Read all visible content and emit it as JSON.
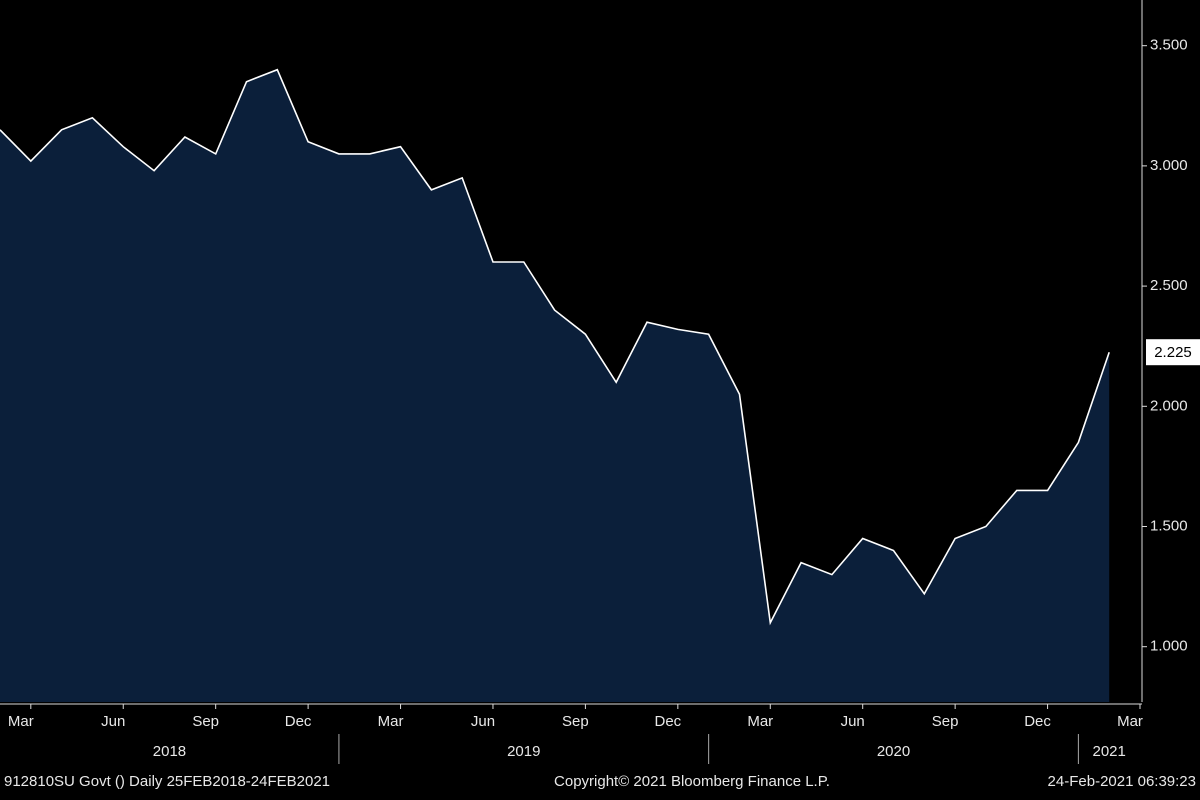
{
  "chart_data": {
    "type": "area",
    "x": [
      "2018-02",
      "2018-03",
      "2018-04",
      "2018-05",
      "2018-06",
      "2018-07",
      "2018-08",
      "2018-09",
      "2018-10",
      "2018-11",
      "2018-12",
      "2019-01",
      "2019-02",
      "2019-03",
      "2019-04",
      "2019-05",
      "2019-06",
      "2019-07",
      "2019-08",
      "2019-09",
      "2019-10",
      "2019-11",
      "2019-12",
      "2020-01",
      "2020-02",
      "2020-03",
      "2020-04",
      "2020-05",
      "2020-06",
      "2020-07",
      "2020-08",
      "2020-09",
      "2020-10",
      "2020-11",
      "2020-12",
      "2021-01",
      "2021-02"
    ],
    "values": [
      3.15,
      3.02,
      3.15,
      3.2,
      3.08,
      2.98,
      3.12,
      3.05,
      3.35,
      3.4,
      3.1,
      3.05,
      3.05,
      3.08,
      2.9,
      2.95,
      2.6,
      2.6,
      2.4,
      2.3,
      2.1,
      2.35,
      2.32,
      2.3,
      2.05,
      1.1,
      1.35,
      1.3,
      1.45,
      1.4,
      1.22,
      1.45,
      1.5,
      1.65,
      1.65,
      1.85,
      2.225
    ],
    "color": "#0b1f3a",
    "line_color": "#ffffff",
    "xlim": [
      "2018-02",
      "2021-03"
    ],
    "xticks": [
      {
        "value": "2018-03",
        "label": "Mar"
      },
      {
        "value": "2018-06",
        "label": "Jun"
      },
      {
        "value": "2018-09",
        "label": "Sep"
      },
      {
        "value": "2018-12",
        "label": "Dec"
      },
      {
        "value": "2019-03",
        "label": "Mar"
      },
      {
        "value": "2019-06",
        "label": "Jun"
      },
      {
        "value": "2019-09",
        "label": "Sep"
      },
      {
        "value": "2019-12",
        "label": "Dec"
      },
      {
        "value": "2020-03",
        "label": "Mar"
      },
      {
        "value": "2020-06",
        "label": "Jun"
      },
      {
        "value": "2020-09",
        "label": "Sep"
      },
      {
        "value": "2020-12",
        "label": "Dec"
      },
      {
        "value": "2021-03",
        "label": "Mar"
      }
    ],
    "year_labels": [
      "2018",
      "2019",
      "2020",
      "2021"
    ],
    "ylim": [
      0.77,
      3.69
    ],
    "yticks": [
      {
        "value": 1.0,
        "label": "1.000"
      },
      {
        "value": 1.5,
        "label": "1.500"
      },
      {
        "value": 2.0,
        "label": "2.000"
      },
      {
        "value": 2.5,
        "label": "2.500"
      },
      {
        "value": 3.0,
        "label": "3.000"
      },
      {
        "value": 3.5,
        "label": "3.500"
      }
    ],
    "footer_left": "912810SU Govt ()  Daily 25FEB2018-24FEB2021",
    "footer_center": "Copyright© 2021 Bloomberg Finance L.P.",
    "footer_right": "24-Feb-2021 06:39:23"
  }
}
